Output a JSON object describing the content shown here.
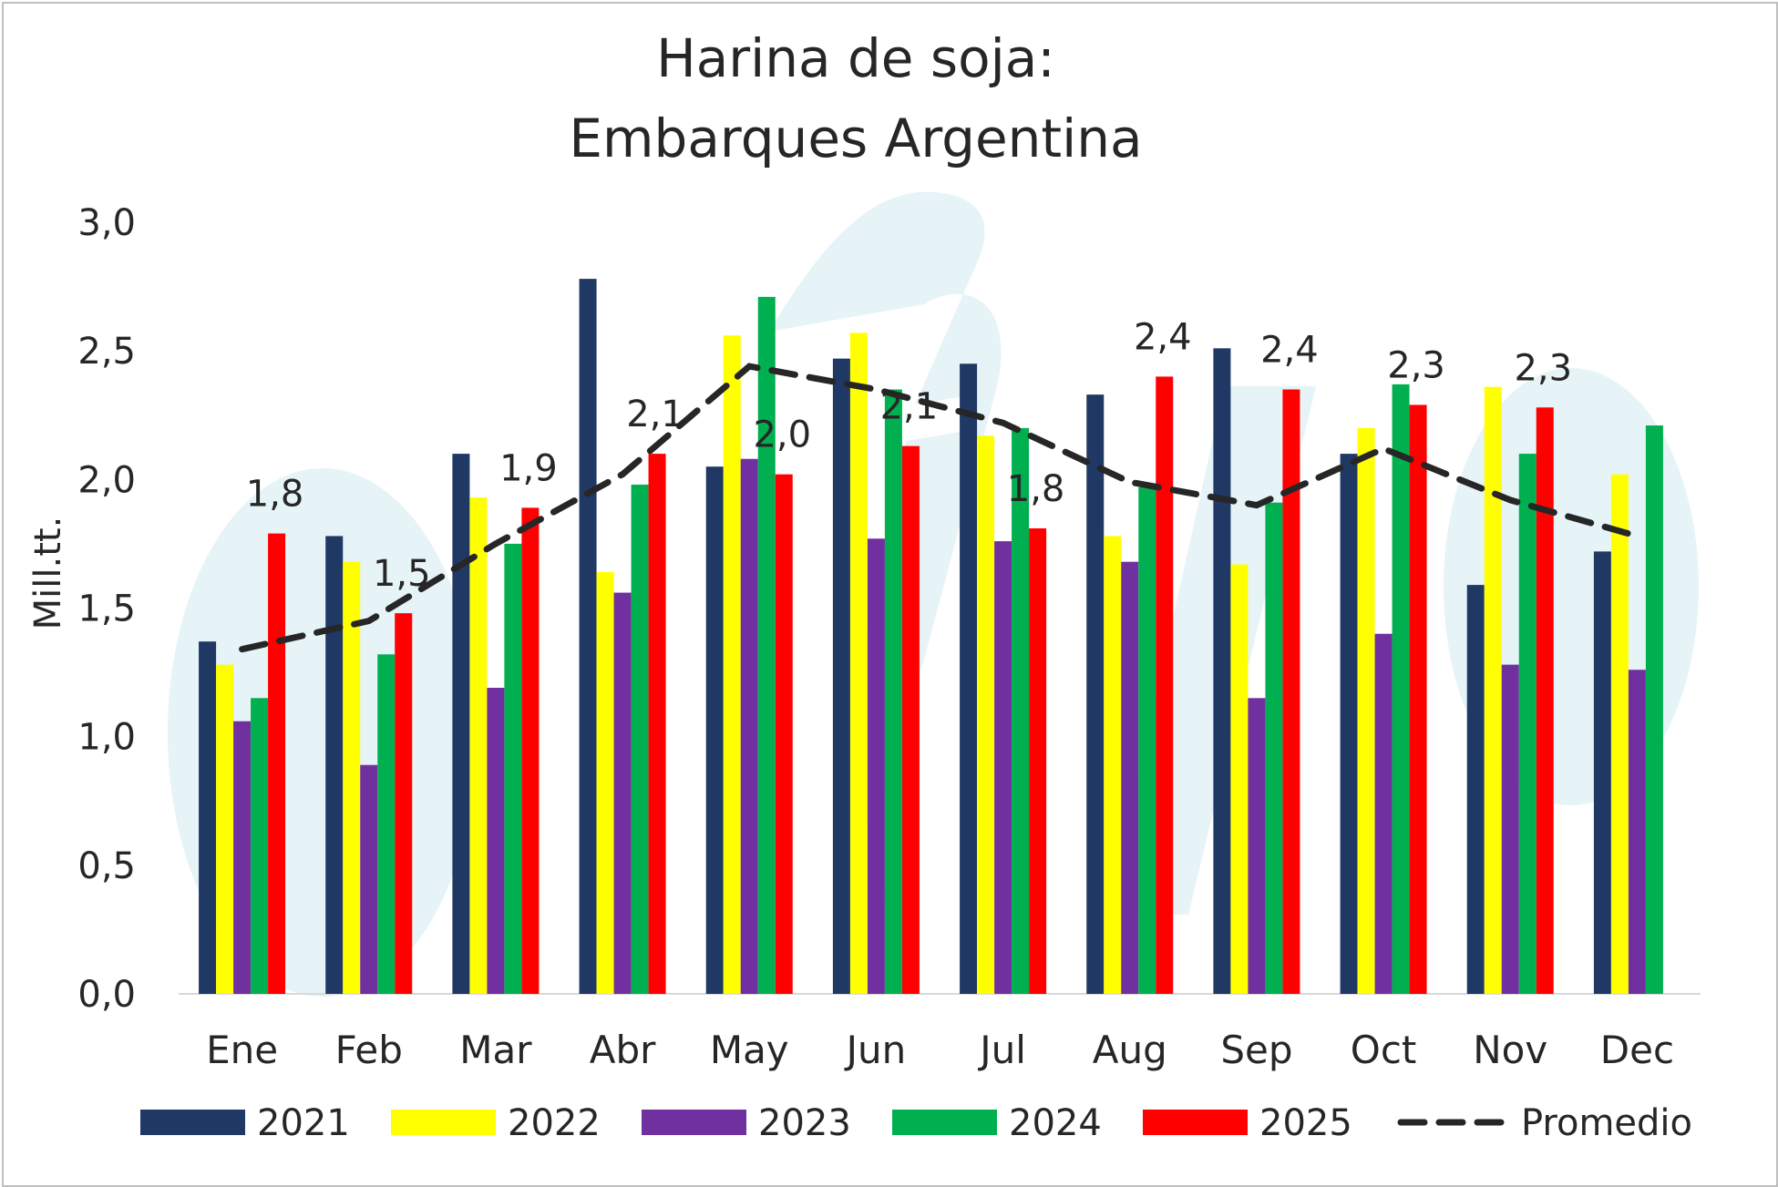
{
  "chart_data": {
    "type": "bar",
    "title": [
      "Harina de soja:",
      "Embarques Argentina"
    ],
    "ylabel": "Mill.tt.",
    "xlabel": "",
    "ylim": [
      0,
      3.0
    ],
    "yticks": [
      "0,0",
      "0,5",
      "1,0",
      "1,5",
      "2,0",
      "2,5",
      "3,0"
    ],
    "grid": false,
    "legend_position": "bottom",
    "categories": [
      "Ene",
      "Feb",
      "Mar",
      "Abr",
      "May",
      "Jun",
      "Jul",
      "Aug",
      "Sep",
      "Oct",
      "Nov",
      "Dec"
    ],
    "series": [
      {
        "name": "2021",
        "color": "#1f3864",
        "values": [
          1.37,
          1.78,
          2.1,
          2.78,
          2.05,
          2.47,
          2.45,
          2.33,
          2.51,
          2.1,
          1.59,
          1.72
        ]
      },
      {
        "name": "2022",
        "color": "#ffff00",
        "values": [
          1.28,
          1.68,
          1.93,
          1.64,
          2.56,
          2.57,
          2.17,
          1.78,
          1.67,
          2.2,
          2.36,
          2.02
        ]
      },
      {
        "name": "2023",
        "color": "#7030a0",
        "values": [
          1.06,
          0.89,
          1.19,
          1.56,
          2.08,
          1.77,
          1.76,
          1.68,
          1.15,
          1.4,
          1.28,
          1.26
        ]
      },
      {
        "name": "2024",
        "color": "#00b050",
        "values": [
          1.15,
          1.32,
          1.75,
          1.98,
          2.71,
          2.35,
          2.2,
          1.97,
          1.91,
          2.37,
          2.1,
          2.21
        ]
      },
      {
        "name": "2025",
        "color": "#ff0000",
        "values": [
          1.79,
          1.48,
          1.89,
          2.1,
          2.02,
          2.13,
          1.81,
          2.4,
          2.35,
          2.29,
          2.28,
          null
        ],
        "labels": [
          "1,8",
          "1,5",
          "1,9",
          "2,1",
          "2,0",
          "2,1",
          "1,8",
          "2,4",
          "2,4",
          "2,3",
          "2,3",
          ""
        ]
      }
    ],
    "average": {
      "name": "Promedio",
      "color": "#262626",
      "style": "dashed",
      "values": [
        1.34,
        1.45,
        1.75,
        2.02,
        2.44,
        2.35,
        2.22,
        1.99,
        1.9,
        2.12,
        1.92,
        1.78
      ]
    }
  }
}
